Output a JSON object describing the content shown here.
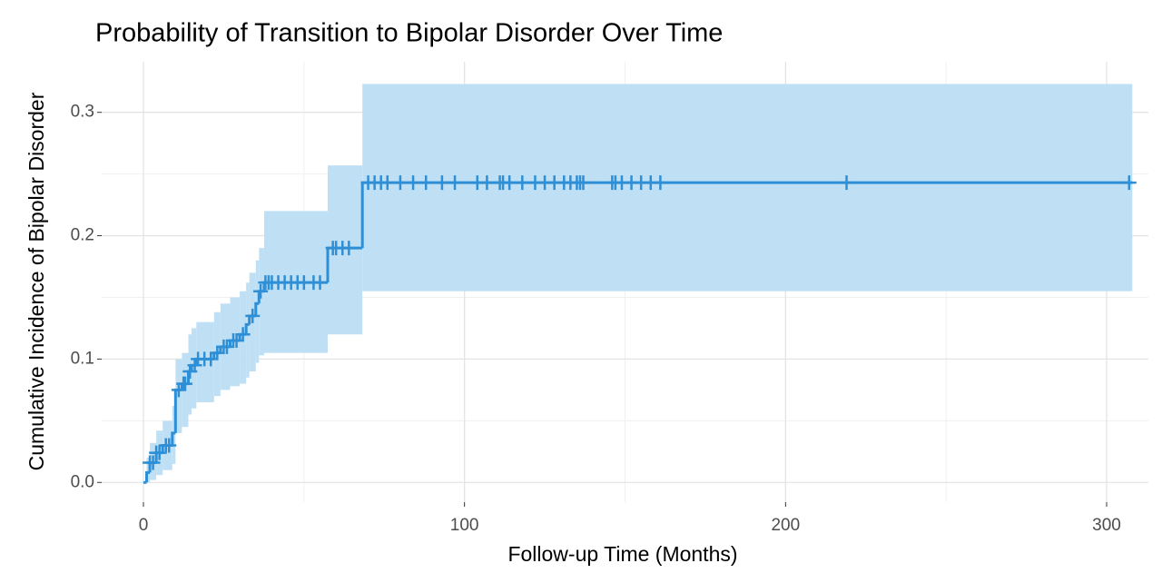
{
  "chart_data": {
    "type": "step",
    "title": "Probability of Transition to Bipolar Disorder Over Time",
    "x_label": "Follow-up Time (Months)",
    "y_label": "Cumulative Incidence of Bipolar Disorder",
    "xlim": [
      -13,
      313
    ],
    "ylim": [
      -0.016,
      0.341
    ],
    "xticks": [
      0,
      100,
      200,
      300
    ],
    "yticks": [
      {
        "value": 0,
        "label": "0.0"
      },
      0.1,
      0.2,
      0.3
    ],
    "grid": true,
    "series": [
      {
        "color": "#2e8fd6",
        "band_color": "#bfe0f4",
        "x": [
          0,
          1,
          2,
          4,
          6,
          9,
          10,
          12,
          14,
          15,
          16.5,
          22,
          24,
          27,
          30,
          32,
          33,
          35,
          36,
          37.6,
          57.4,
          68.2,
          308
        ],
        "values": [
          0,
          0.008,
          0.016,
          0.024,
          0.03,
          0.04,
          0.075,
          0.08,
          0.09,
          0.095,
          0.1,
          0.105,
          0.11,
          0.115,
          0.12,
          0.128,
          0.135,
          0.145,
          0.155,
          0.162,
          0.19,
          0.243,
          0.243
        ],
        "lower": [
          0,
          0,
          0.002,
          0.006,
          0.01,
          0.015,
          0.04,
          0.045,
          0.055,
          0.06,
          0.065,
          0.07,
          0.075,
          0.078,
          0.08,
          0.085,
          0.09,
          0.097,
          0.103,
          0.105,
          0.12,
          0.155,
          0.155
        ],
        "upper": [
          0,
          0.02,
          0.032,
          0.042,
          0.05,
          0.062,
          0.1,
          0.105,
          0.12,
          0.125,
          0.13,
          0.138,
          0.145,
          0.15,
          0.155,
          0.162,
          0.17,
          0.18,
          0.19,
          0.22,
          0.257,
          0.323,
          0.323
        ],
        "censored": {
          "x": [
            2,
            3,
            4,
            5,
            7,
            8,
            11,
            12.5,
            13,
            14.5,
            16,
            17,
            19,
            21,
            23,
            25,
            26,
            28,
            29,
            31,
            34,
            36.5,
            38,
            39,
            40,
            42,
            44,
            46,
            48,
            50,
            53,
            55,
            59,
            60,
            62,
            64,
            70,
            72,
            74,
            76,
            80,
            84,
            88,
            93,
            97,
            104,
            107,
            111,
            112,
            114,
            118,
            122,
            125,
            128,
            131,
            133,
            135,
            136,
            137,
            146,
            147,
            149,
            152,
            155,
            158,
            161,
            219,
            307
          ],
          "values": [
            0.016,
            0.016,
            0.024,
            0.024,
            0.03,
            0.03,
            0.075,
            0.08,
            0.08,
            0.09,
            0.095,
            0.1,
            0.1,
            0.1,
            0.105,
            0.11,
            0.11,
            0.115,
            0.115,
            0.12,
            0.135,
            0.155,
            0.162,
            0.162,
            0.162,
            0.162,
            0.162,
            0.162,
            0.162,
            0.162,
            0.162,
            0.162,
            0.19,
            0.19,
            0.19,
            0.19,
            0.243,
            0.243,
            0.243,
            0.243,
            0.243,
            0.243,
            0.243,
            0.243,
            0.243,
            0.243,
            0.243,
            0.243,
            0.243,
            0.243,
            0.243,
            0.243,
            0.243,
            0.243,
            0.243,
            0.243,
            0.243,
            0.243,
            0.243,
            0.243,
            0.243,
            0.243,
            0.243,
            0.243,
            0.243,
            0.243,
            0.243,
            0.243
          ]
        }
      }
    ]
  }
}
